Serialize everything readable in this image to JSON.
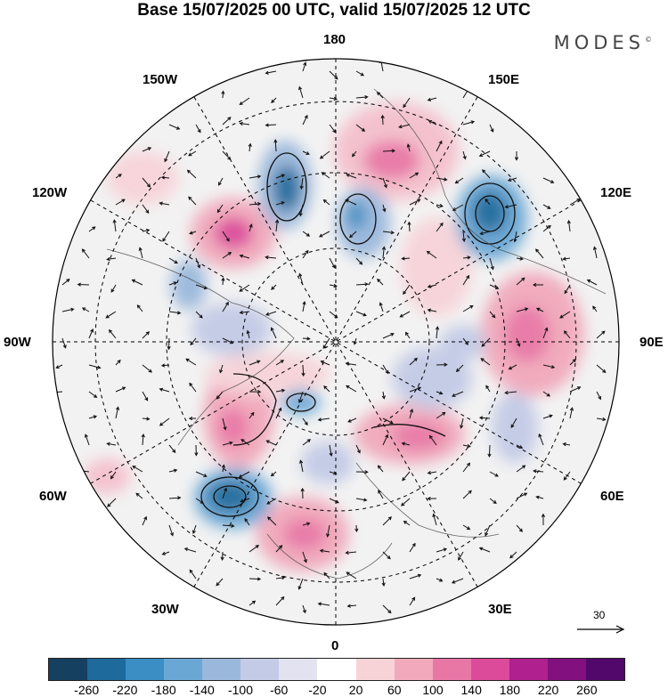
{
  "title": "Base 15/07/2025 00 UTC, valid 15/07/2025 12 UTC",
  "brand": "MODES",
  "brand_mark": "©",
  "longitude_labels": {
    "top": "180",
    "bottom": "0",
    "left": "90W",
    "right": "90E",
    "upper_left_1": "150W",
    "upper_left_2": "120W",
    "upper_right_1": "150E",
    "upper_right_2": "120E",
    "lower_left_1": "60W",
    "lower_left_2": "30W",
    "lower_right_1": "60E",
    "lower_right_2": "30E"
  },
  "vector_reference": {
    "value": "30"
  },
  "colorbar": {
    "colors": [
      "#15405f",
      "#1e6a9c",
      "#3a8ec3",
      "#6aa7d5",
      "#9ab8dc",
      "#c3cbe6",
      "#e2e2f0",
      "#ffffff",
      "#f7d3d8",
      "#f1a9bb",
      "#e877a6",
      "#dc4a9a",
      "#b0208e",
      "#82107e",
      "#52086a"
    ],
    "ticks": [
      "-260",
      "-220",
      "-180",
      "-140",
      "-100",
      "-60",
      "-20",
      "20",
      "60",
      "100",
      "140",
      "180",
      "220",
      "260"
    ]
  }
}
